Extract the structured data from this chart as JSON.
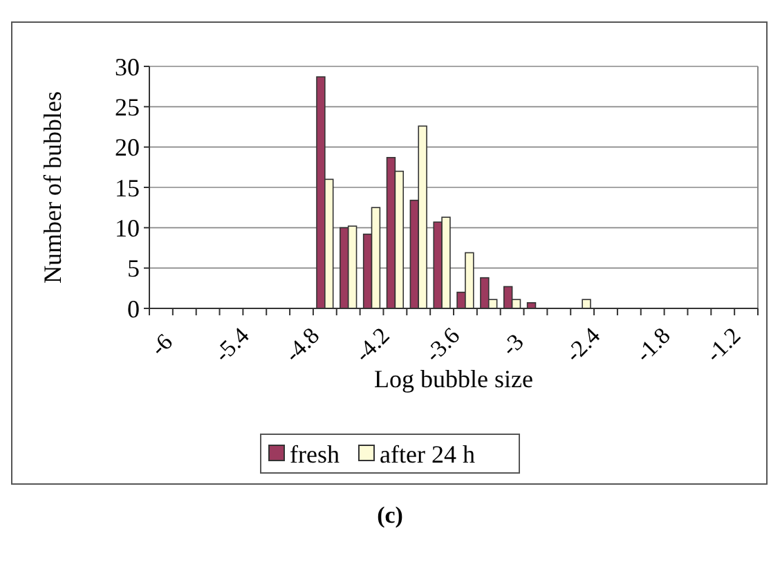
{
  "chart_data": {
    "type": "bar",
    "xlabel": "Log bubble size",
    "ylabel": "Number of bubbles",
    "annotations": [
      "(c)"
    ],
    "categories": [
      "-6",
      null,
      null,
      "-5.4",
      null,
      null,
      "-4.8",
      null,
      null,
      "-4.2",
      null,
      null,
      "-3.6",
      null,
      null,
      "-3",
      null,
      null,
      "-2.4",
      null,
      null,
      "-1.8",
      null,
      null,
      "-1.2",
      null
    ],
    "series": [
      {
        "name": "fresh",
        "color": "#9c3a5e",
        "values": [
          0,
          0,
          0,
          0,
          0,
          0,
          0,
          28.7,
          10,
          9.2,
          18.7,
          13.4,
          10.7,
          2,
          3.8,
          2.7,
          0.7,
          0,
          0,
          0,
          0,
          0,
          0,
          0,
          0,
          0
        ]
      },
      {
        "name": "after 24 h",
        "color": "#fdfbd6",
        "values": [
          0,
          0,
          0,
          0,
          0,
          0,
          0,
          16,
          10.2,
          12.5,
          17,
          22.6,
          11.3,
          6.9,
          1.1,
          1.1,
          0,
          0,
          1.1,
          0,
          0,
          0,
          0,
          0,
          0,
          0
        ]
      }
    ],
    "ylim": [
      0,
      30
    ],
    "yticks": [
      0,
      5,
      10,
      15,
      20,
      25,
      30
    ],
    "grid": "y",
    "legend": "bottom"
  }
}
